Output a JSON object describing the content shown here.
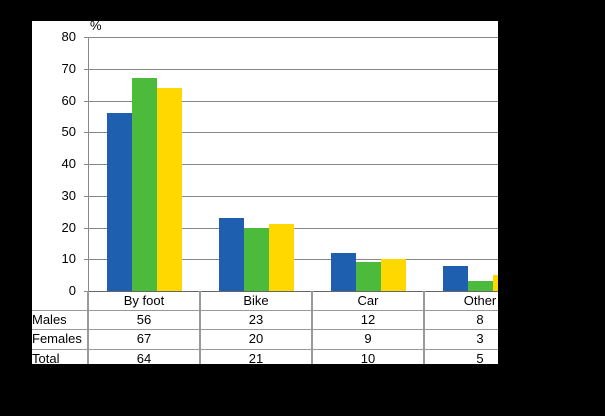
{
  "chart_data": {
    "type": "bar",
    "title": "",
    "ylabel": "%",
    "xlabel": "",
    "ylim": [
      0,
      80
    ],
    "yticks": [
      0,
      10,
      20,
      30,
      40,
      50,
      60,
      70,
      80
    ],
    "grid": true,
    "legend_position": "data table below chart",
    "categories": [
      "By foot",
      "Bike",
      "Car",
      "Other"
    ],
    "series": [
      {
        "name": "Males",
        "values": [
          56,
          23,
          12,
          8
        ],
        "color": "#1f5fb0"
      },
      {
        "name": "Females",
        "values": [
          67,
          20,
          9,
          3
        ],
        "color": "#4cbb3c"
      },
      {
        "name": "Total",
        "values": [
          64,
          21,
          10,
          5
        ],
        "color": "#ffd800"
      }
    ]
  },
  "axis": {
    "unit": "%",
    "ticks": [
      "0",
      "10",
      "20",
      "30",
      "40",
      "50",
      "60",
      "70",
      "80"
    ]
  },
  "table": {
    "headers": [
      "By foot",
      "Bike",
      "Car",
      "Other"
    ],
    "rows": [
      {
        "label": "Males",
        "values": [
          "56",
          "23",
          "12",
          "8"
        ]
      },
      {
        "label": "Females",
        "values": [
          "67",
          "20",
          "9",
          "3"
        ]
      },
      {
        "label": "Total",
        "values": [
          "64",
          "21",
          "10",
          "5"
        ]
      }
    ]
  }
}
